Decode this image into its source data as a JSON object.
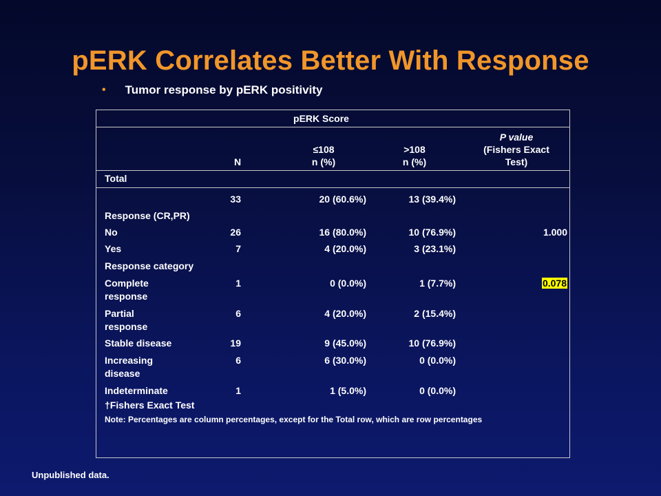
{
  "slide": {
    "title": "pERK Correlates Better With Response",
    "bullet_symbol": "•",
    "bullet_text": "Tumor response by pERK positivity",
    "source_note": "Unpublished data."
  },
  "colors": {
    "title": "#f0962a",
    "text": "#ffffff",
    "highlight": "#ffff00",
    "table_border": "#c8c8c8"
  },
  "table": {
    "score_header": "pERK Score",
    "col_n": "N",
    "col_le_1": "≤108",
    "col_le_2": "n (%)",
    "col_gt_1": ">108",
    "col_gt_2": "n (%)",
    "col_p_1": "P value",
    "col_p_2": "(Fishers Exact",
    "col_p_3": "Test)",
    "total_label": "Total",
    "rows": [
      {
        "label": "",
        "n": "33",
        "le": "20 (60.6%)",
        "gt": "13 (39.4%)",
        "p": ""
      },
      {
        "label": "Response (CR,PR)",
        "n": "",
        "le": "",
        "gt": "",
        "p": ""
      },
      {
        "label": "No",
        "n": "26",
        "le": "16 (80.0%)",
        "gt": "10 (76.9%)",
        "p": "1.000"
      },
      {
        "label": "Yes",
        "n": "7",
        "le": "4 (20.0%)",
        "gt": "3 (23.1%)",
        "p": ""
      },
      {
        "label": "Response category",
        "n": "",
        "le": "",
        "gt": "",
        "p": ""
      },
      {
        "label": "Complete response",
        "n": "1",
        "le": "0 (0.0%)",
        "gt": "1 (7.7%)",
        "p": "0.078"
      },
      {
        "label": "Partial response",
        "n": "6",
        "le": "4 (20.0%)",
        "gt": "2 (15.4%)",
        "p": ""
      },
      {
        "label": "Stable disease",
        "n": "19",
        "le": "9 (45.0%)",
        "gt": "10 (76.9%)",
        "p": ""
      },
      {
        "label": "Increasing disease",
        "n": "6",
        "le": "6 (30.0%)",
        "gt": "0 (0.0%)",
        "p": ""
      },
      {
        "label": "Indeterminate",
        "n": "1",
        "le": "1 (5.0%)",
        "gt": "0 (0.0%)",
        "p": ""
      }
    ],
    "footnote_1": "†Fishers Exact Test",
    "footnote_2": "Note: Percentages are column percentages, except for the Total row, which are row percentages"
  }
}
